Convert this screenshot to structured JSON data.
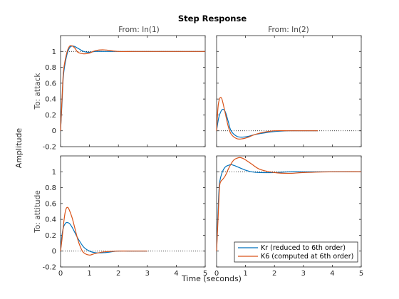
{
  "chart_data": {
    "type": "line",
    "title": "Step Response",
    "xlabel": "Time (seconds)",
    "ylabel": "Amplitude",
    "column_titles": [
      "From: In(1)",
      "From: In(2)"
    ],
    "row_titles": [
      "To: attack",
      "To: attitude"
    ],
    "xlim": [
      0,
      5
    ],
    "ylim": [
      -0.2,
      1.2
    ],
    "xticks": [
      "0",
      "1",
      "2",
      "3",
      "4",
      "5"
    ],
    "yticks": [
      "-0.2",
      "0",
      "0.2",
      "0.4",
      "0.6",
      "0.8",
      "1"
    ],
    "legend": {
      "position": "bottom-right of lower-right subplot",
      "entries": [
        "Kr (reduced to 6th order)",
        "K6 (computed at 6th order)"
      ]
    },
    "colors": {
      "series_1": "#0072BD",
      "series_2": "#D95319",
      "reference": "#000000"
    },
    "subplots": [
      {
        "row": 1,
        "col": 1,
        "steady_state": 1,
        "series": [
          {
            "name": "Kr (reduced to 6th order)",
            "x": [
              0,
              0.05,
              0.1,
              0.2,
              0.3,
              0.4,
              0.5,
              0.6,
              0.8,
              1.0,
              1.2,
              1.5,
              2.0,
              2.5,
              3.0,
              4.0,
              5.0
            ],
            "values": [
              0,
              0.35,
              0.7,
              0.93,
              1.04,
              1.07,
              1.06,
              1.04,
              1.0,
              0.99,
              1.0,
              1.0,
              1.0,
              1.0,
              1.0,
              1.0,
              1.0
            ]
          },
          {
            "name": "K6 (computed at 6th order)",
            "x": [
              0,
              0.05,
              0.1,
              0.2,
              0.3,
              0.4,
              0.5,
              0.6,
              0.8,
              1.0,
              1.2,
              1.5,
              2.0,
              2.5,
              3.0,
              4.0,
              5.0
            ],
            "values": [
              0,
              0.4,
              0.75,
              0.96,
              1.06,
              1.07,
              1.04,
              0.99,
              0.97,
              0.98,
              1.01,
              1.02,
              1.0,
              1.0,
              1.0,
              1.0,
              1.0
            ]
          }
        ]
      },
      {
        "row": 1,
        "col": 2,
        "steady_state": 0,
        "series": [
          {
            "name": "Kr (reduced to 6th order)",
            "x": [
              0,
              0.05,
              0.1,
              0.2,
              0.3,
              0.4,
              0.5,
              0.7,
              0.9,
              1.1,
              1.3,
              1.6,
              2.0,
              2.5,
              3.0,
              3.5
            ],
            "values": [
              0,
              0.12,
              0.2,
              0.27,
              0.24,
              0.12,
              0.0,
              -0.07,
              -0.08,
              -0.07,
              -0.05,
              -0.03,
              -0.01,
              0.0,
              0.0,
              0.0
            ]
          },
          {
            "name": "K6 (computed at 6th order)",
            "x": [
              0,
              0.05,
              0.1,
              0.15,
              0.2,
              0.3,
              0.4,
              0.5,
              0.7,
              0.9,
              1.1,
              1.3,
              1.6,
              2.0,
              2.5,
              3.0,
              3.5
            ],
            "values": [
              0,
              0.3,
              0.4,
              0.42,
              0.38,
              0.22,
              0.06,
              -0.04,
              -0.1,
              -0.1,
              -0.08,
              -0.05,
              -0.02,
              0.0,
              0.0,
              0.0,
              0.0
            ]
          }
        ]
      },
      {
        "row": 2,
        "col": 1,
        "steady_state": 0,
        "series": [
          {
            "name": "Kr (reduced to 6th order)",
            "x": [
              0,
              0.05,
              0.1,
              0.15,
              0.2,
              0.3,
              0.4,
              0.5,
              0.6,
              0.8,
              1.0,
              1.2,
              1.5,
              2.0,
              2.5,
              3.0
            ],
            "values": [
              0,
              0.2,
              0.3,
              0.34,
              0.36,
              0.35,
              0.3,
              0.23,
              0.16,
              0.05,
              0.0,
              -0.02,
              -0.02,
              0.0,
              0.0,
              0.0
            ]
          },
          {
            "name": "K6 (computed at 6th order)",
            "x": [
              0,
              0.05,
              0.1,
              0.15,
              0.2,
              0.25,
              0.3,
              0.4,
              0.5,
              0.6,
              0.7,
              0.8,
              1.0,
              1.2,
              1.5,
              2.0,
              2.5,
              3.0
            ],
            "values": [
              0,
              0.15,
              0.33,
              0.47,
              0.54,
              0.55,
              0.52,
              0.42,
              0.28,
              0.14,
              0.04,
              -0.02,
              -0.05,
              -0.03,
              -0.01,
              0.0,
              0.0,
              0.0
            ]
          }
        ]
      },
      {
        "row": 2,
        "col": 2,
        "steady_state": 1,
        "series": [
          {
            "name": "Kr (reduced to 6th order)",
            "x": [
              0,
              0.05,
              0.1,
              0.2,
              0.3,
              0.4,
              0.5,
              0.6,
              0.8,
              1.0,
              1.2,
              1.5,
              2.0,
              2.5,
              3.0,
              4.0,
              5.0
            ],
            "values": [
              0,
              0.5,
              0.85,
              1.0,
              1.06,
              1.08,
              1.09,
              1.08,
              1.05,
              1.02,
              1.0,
              0.99,
              0.99,
              1.0,
              1.0,
              1.0,
              1.0
            ]
          },
          {
            "name": "K6 (computed at 6th order)",
            "x": [
              0,
              0.05,
              0.1,
              0.15,
              0.2,
              0.3,
              0.4,
              0.5,
              0.6,
              0.7,
              0.8,
              0.9,
              1.0,
              1.2,
              1.5,
              2.0,
              2.5,
              3.0,
              4.0,
              5.0
            ],
            "values": [
              0,
              0.4,
              0.8,
              0.88,
              0.9,
              0.95,
              1.03,
              1.1,
              1.15,
              1.17,
              1.18,
              1.17,
              1.15,
              1.1,
              1.03,
              0.99,
              0.98,
              0.99,
              1.0,
              1.0
            ]
          }
        ]
      }
    ]
  }
}
